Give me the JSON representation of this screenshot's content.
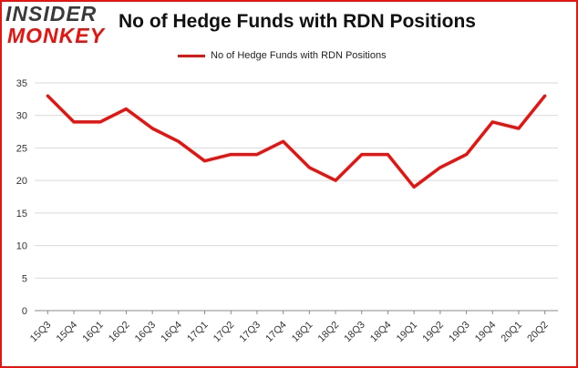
{
  "logo": {
    "line1": "INSIDER",
    "line2": "MONKEY"
  },
  "colors": {
    "series": "#e8130f",
    "grid": "#d9d9d9",
    "axis": "#888888",
    "border": "#e8130f"
  },
  "chart_data": {
    "type": "line",
    "title": "No of Hedge Funds with RDN Positions",
    "xlabel": "",
    "ylabel": "",
    "categories": [
      "15Q3",
      "15Q4",
      "16Q1",
      "16Q2",
      "16Q3",
      "16Q4",
      "17Q1",
      "17Q2",
      "17Q3",
      "17Q4",
      "18Q1",
      "18Q2",
      "18Q3",
      "18Q4",
      "19Q1",
      "19Q2",
      "19Q3",
      "19Q4",
      "20Q1",
      "20Q2"
    ],
    "series": [
      {
        "name": "No of Hedge Funds with RDN Positions",
        "values": [
          33,
          29,
          29,
          31,
          28,
          26,
          23,
          24,
          24,
          26,
          22,
          20,
          24,
          24,
          19,
          22,
          24,
          29,
          28,
          33
        ]
      }
    ],
    "ylim": [
      0,
      35
    ],
    "yticks": [
      0,
      5,
      10,
      15,
      20,
      25,
      30,
      35
    ],
    "grid": true,
    "legend": "top-center"
  }
}
